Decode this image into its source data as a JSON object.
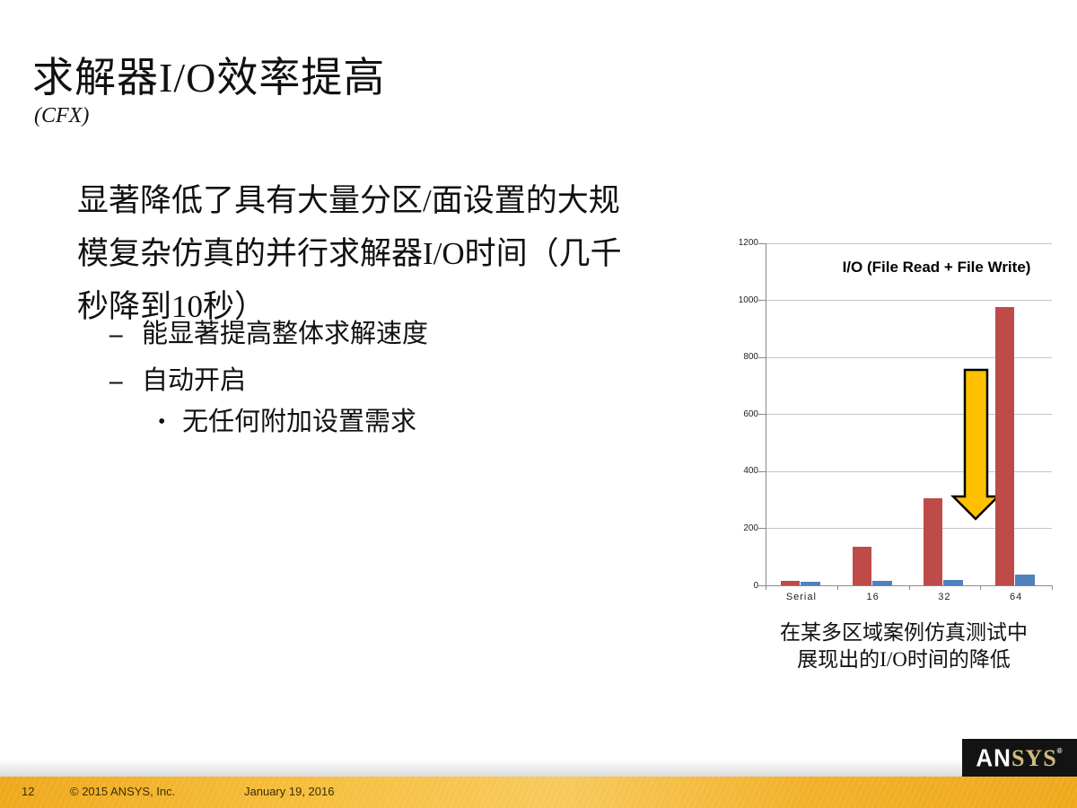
{
  "slide": {
    "title": "求解器I/O效率提高",
    "subtitle": "(CFX)",
    "body": {
      "paragraph_lines": [
        "显著降低了具有大量分区/面设置的大规",
        "模复杂仿真的并行求解器I/O时间（几千",
        "秒降到10秒）"
      ],
      "bullets": [
        {
          "marker": "–",
          "text": "能显著提高整体求解速度"
        },
        {
          "marker": "–",
          "text": "自动开启"
        }
      ],
      "sub_bullet": {
        "marker": "•",
        "text": "无任何附加设置需求"
      }
    },
    "caption_lines": [
      "在某多区域案例仿真测试中",
      "展现出的I/O时间的降低"
    ]
  },
  "chart_data": {
    "type": "bar",
    "title": "I/O (File Read + File Write)",
    "categories": [
      "Serial",
      "16",
      "32",
      "64"
    ],
    "series": [
      {
        "name": "red-series",
        "color": "#be4b48",
        "values": [
          15,
          135,
          305,
          975
        ]
      },
      {
        "name": "blue-series",
        "color": "#4f81bd",
        "values": [
          13,
          16,
          20,
          38
        ]
      }
    ],
    "xlabel": "",
    "ylabel": "",
    "ylim": [
      0,
      1200
    ],
    "yticks": [
      0,
      200,
      400,
      600,
      800,
      1000,
      1200
    ],
    "grid": true,
    "legend": "none",
    "annotation": {
      "shape": "down-arrow",
      "color": "#ffc000",
      "outline": "#000000",
      "meaning": "reduction of I/O time"
    }
  },
  "footer": {
    "page_number": "12",
    "copyright": "© 2015 ANSYS, Inc.",
    "date": "January 19, 2016",
    "logo_an": "AN",
    "logo_sys": "SYS",
    "logo_reg": "®"
  },
  "colors": {
    "bar_red": "#be4b48",
    "bar_blue": "#4f81bd",
    "arrow_gold": "#ffc000",
    "footer_gold": "#f2b02a",
    "gridline": "#c6c6c6",
    "axis": "#8a8a8a"
  }
}
